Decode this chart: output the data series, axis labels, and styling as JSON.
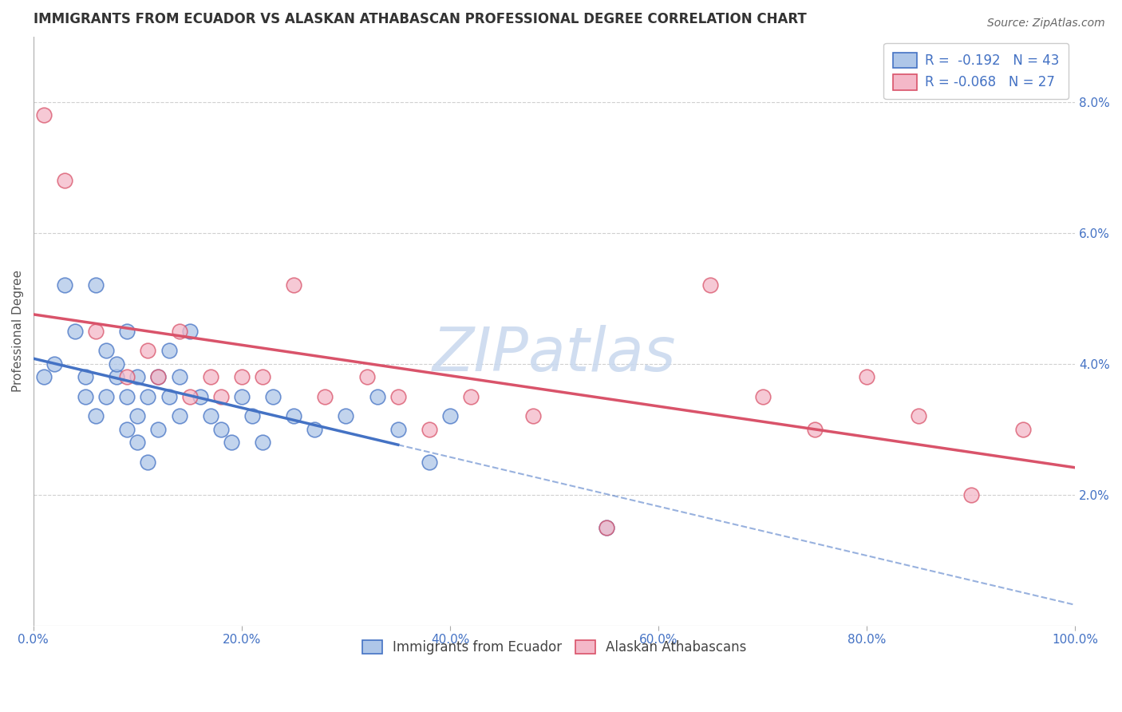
{
  "title": "IMMIGRANTS FROM ECUADOR VS ALASKAN ATHABASCAN PROFESSIONAL DEGREE CORRELATION CHART",
  "source_text": "Source: ZipAtlas.com",
  "ylabel": "Professional Degree",
  "series1_label": "Immigrants from Ecuador",
  "series2_label": "Alaskan Athabascans",
  "series1_R": -0.192,
  "series1_N": 43,
  "series2_R": -0.068,
  "series2_N": 27,
  "series1_color": "#aec6e8",
  "series2_color": "#f4b8c8",
  "trend1_color": "#4472c4",
  "trend2_color": "#d9536a",
  "xlim": [
    0,
    100
  ],
  "ylim": [
    0,
    9
  ],
  "yticks": [
    0,
    2,
    4,
    6,
    8
  ],
  "ytick_labels": [
    "",
    "2.0%",
    "4.0%",
    "6.0%",
    "8.0%"
  ],
  "xticks": [
    0,
    20,
    40,
    60,
    80,
    100
  ],
  "xtick_labels": [
    "0.0%",
    "20.0%",
    "40.0%",
    "60.0%",
    "80.0%",
    "100.0%"
  ],
  "watermark": "ZIPatlas",
  "background_color": "#ffffff",
  "grid_color": "#d0d0d0",
  "series1_x": [
    1,
    2,
    3,
    4,
    5,
    5,
    6,
    6,
    7,
    7,
    8,
    8,
    9,
    9,
    9,
    10,
    10,
    10,
    11,
    11,
    12,
    12,
    13,
    13,
    14,
    14,
    15,
    16,
    17,
    18,
    19,
    20,
    21,
    22,
    23,
    25,
    27,
    30,
    33,
    35,
    38,
    40,
    55
  ],
  "series1_y": [
    3.8,
    4.0,
    5.2,
    4.5,
    3.5,
    3.8,
    5.2,
    3.2,
    4.2,
    3.5,
    3.8,
    4.0,
    3.5,
    3.0,
    4.5,
    3.8,
    3.2,
    2.8,
    3.5,
    2.5,
    3.8,
    3.0,
    4.2,
    3.5,
    3.8,
    3.2,
    4.5,
    3.5,
    3.2,
    3.0,
    2.8,
    3.5,
    3.2,
    2.8,
    3.5,
    3.2,
    3.0,
    3.2,
    3.5,
    3.0,
    2.5,
    3.2,
    1.5
  ],
  "series2_x": [
    1,
    3,
    6,
    9,
    11,
    12,
    14,
    15,
    17,
    18,
    20,
    22,
    25,
    28,
    32,
    35,
    38,
    42,
    48,
    55,
    65,
    70,
    75,
    80,
    85,
    90,
    95
  ],
  "series2_y": [
    7.8,
    6.8,
    4.5,
    3.8,
    4.2,
    3.8,
    4.5,
    3.5,
    3.8,
    3.5,
    3.8,
    3.8,
    5.2,
    3.5,
    3.8,
    3.5,
    3.0,
    3.5,
    3.2,
    1.5,
    5.2,
    3.5,
    3.0,
    3.8,
    3.2,
    2.0,
    3.0
  ],
  "solid_end_x1": 35,
  "title_fontsize": 12,
  "legend_fontsize": 12,
  "axis_fontsize": 11,
  "tick_fontsize": 11
}
